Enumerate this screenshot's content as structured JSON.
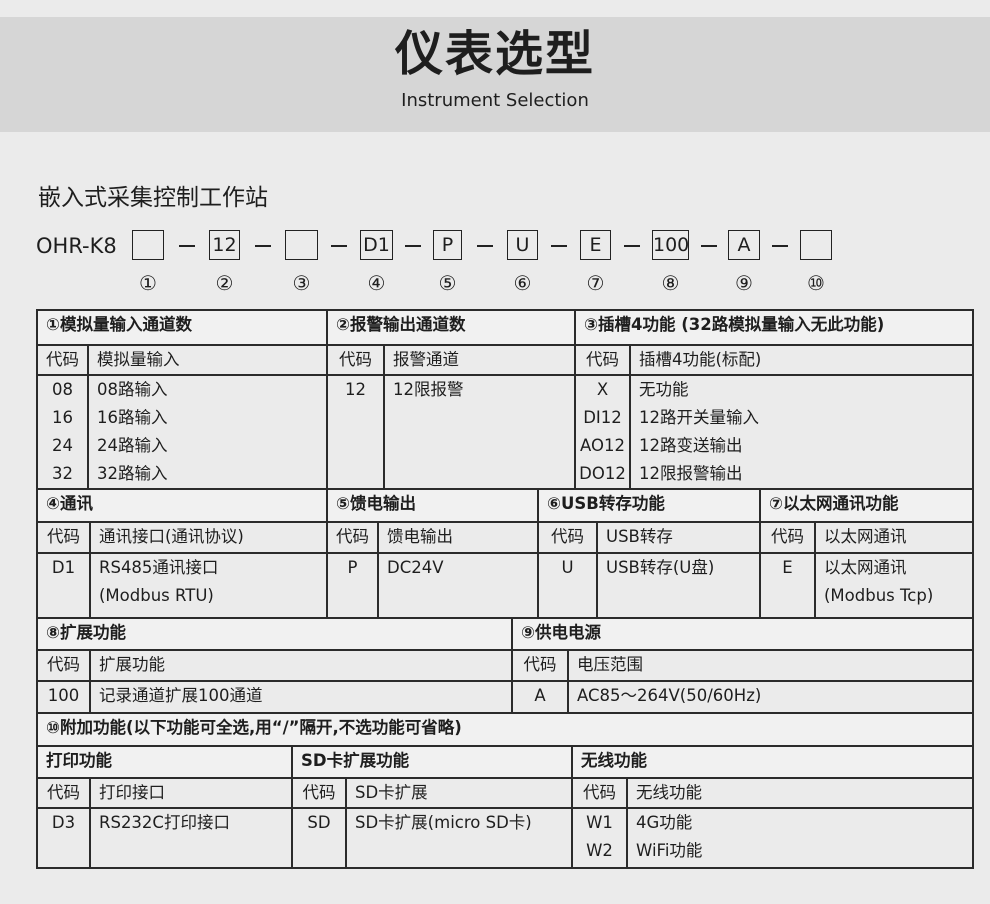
{
  "header": {
    "title": "仪表选型",
    "subtitle": "Instrument Selection"
  },
  "product": "嵌入式采集控制工作站",
  "model": {
    "prefix": "OHR-K8",
    "boxes": [
      "",
      "12",
      "",
      "D1",
      "P",
      "U",
      "E",
      "100",
      "A",
      ""
    ],
    "numbers": [
      "①",
      "②",
      "③",
      "④",
      "⑤",
      "⑥",
      "⑦",
      "⑧",
      "⑨",
      "⑩"
    ]
  },
  "code_label": "代码",
  "s1": {
    "title": "①模拟量输入通道数",
    "head": "模拟量输入",
    "codes": "08\n16\n24\n32",
    "desc": "08路输入\n16路输入\n24路输入\n32路输入"
  },
  "s2": {
    "title": "②报警输出通道数",
    "head": "报警通道",
    "codes": "12",
    "desc": "12限报警"
  },
  "s3": {
    "title": "③插槽4功能 (32路模拟量输入无此功能)",
    "head": "插槽4功能(标配)",
    "codes": "X\nDI12\nAO12\nDO12",
    "desc": "无功能\n12路开关量输入\n12路变送输出\n12限报警输出"
  },
  "s4": {
    "title": "④通讯",
    "head": "通讯接口(通讯协议)",
    "codes": "D1",
    "desc": "RS485通讯接口\n(Modbus RTU)"
  },
  "s5": {
    "title": "⑤馈电输出",
    "head": "馈电输出",
    "codes": "P",
    "desc": "DC24V"
  },
  "s6": {
    "title": "⑥USB转存功能",
    "head": "USB转存",
    "codes": "U",
    "desc": "USB转存(U盘)"
  },
  "s7": {
    "title": "⑦以太网通讯功能",
    "head": "以太网通讯",
    "codes": "E",
    "desc": "以太网通讯\n(Modbus Tcp)"
  },
  "s8": {
    "title": "⑧扩展功能",
    "head": "扩展功能",
    "codes": "100",
    "desc": "记录通道扩展100通道"
  },
  "s9": {
    "title": "⑨供电电源",
    "head": "电压范围",
    "codes": "A",
    "desc": "AC85～264V(50/60Hz)"
  },
  "s10": {
    "title": "⑩附加功能(以下功能可全选,用“/”隔开,不选功能可省略)",
    "print": {
      "title": "打印功能",
      "head": "打印接口",
      "codes": "D3",
      "desc": "RS232C打印接口"
    },
    "sd": {
      "title": "SD卡扩展功能",
      "head": "SD卡扩展",
      "codes": "SD",
      "desc": "SD卡扩展(micro SD卡)"
    },
    "wireless": {
      "title": "无线功能",
      "head": "无线功能",
      "codes": "W1\nW2",
      "desc": "4G功能\nWiFi功能"
    }
  }
}
